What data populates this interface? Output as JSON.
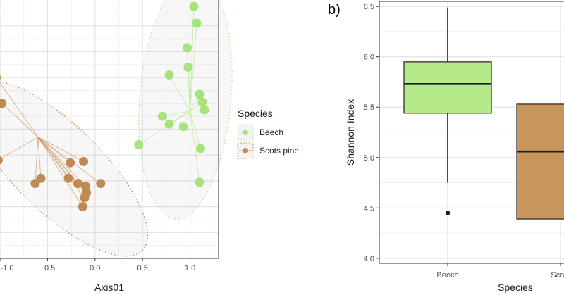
{
  "colors": {
    "beech": "#b6e98a",
    "beech_point": "#a6e37a",
    "pine": "#c8955d",
    "pine_point": "#c08a55",
    "grid_major": "#e3e3e3",
    "grid_minor": "#f1f1f1",
    "panel_border": "#333333",
    "box_line": "#1f1f1f"
  },
  "legend": {
    "title": "Species",
    "items": [
      {
        "label": "Beech",
        "series": "beech"
      },
      {
        "label": "Scots pine",
        "series": "pine"
      }
    ]
  },
  "chart_data": [
    {
      "panel": "a",
      "type": "scatter",
      "xlabel": "Axis01",
      "x_ticks": [
        -1.0,
        -0.5,
        0.0,
        0.5,
        1.0
      ],
      "x_tick_labels": [
        "-1.0",
        "−0.5",
        "0.0",
        "0.5",
        "1.0"
      ],
      "xlim": [
        -1.0,
        1.3
      ],
      "ylim": [
        -1.0,
        1.0
      ],
      "grid": true,
      "legend_position": "right",
      "series": [
        {
          "name": "Beech",
          "key": "beech",
          "centroid": [
            1.0,
            0.14
          ],
          "points": [
            [
              1.04,
              0.95
            ],
            [
              1.07,
              0.82
            ],
            [
              0.97,
              0.63
            ],
            [
              0.98,
              0.48
            ],
            [
              0.78,
              0.42
            ],
            [
              1.1,
              0.27
            ],
            [
              1.13,
              0.21
            ],
            [
              1.15,
              0.15
            ],
            [
              0.71,
              0.1
            ],
            [
              0.78,
              0.04
            ],
            [
              0.93,
              0.02
            ],
            [
              0.46,
              -0.12
            ],
            [
              1.11,
              -0.15
            ],
            [
              1.1,
              -0.41
            ]
          ]
        },
        {
          "name": "Scots pine",
          "key": "pine",
          "centroid": [
            -0.6,
            -0.06
          ],
          "points": [
            [
              -1.04,
              0.4
            ],
            [
              -0.98,
              0.2
            ],
            [
              -1.02,
              -0.24
            ],
            [
              -0.26,
              -0.26
            ],
            [
              -0.12,
              -0.25
            ],
            [
              -0.57,
              -0.38
            ],
            [
              -0.28,
              -0.38
            ],
            [
              -0.63,
              -0.42
            ],
            [
              -0.18,
              -0.42
            ],
            [
              0.06,
              -0.42
            ],
            [
              -0.1,
              -0.44
            ],
            [
              -0.09,
              -0.49
            ],
            [
              -0.11,
              -0.53
            ],
            [
              -0.13,
              -0.6
            ]
          ]
        }
      ]
    },
    {
      "panel": "b",
      "panel_label": "b)",
      "type": "box",
      "xlabel": "Species",
      "ylabel": "Shannon Index",
      "ylim": [
        3.95,
        6.55
      ],
      "y_ticks": [
        4.0,
        4.5,
        5.0,
        5.5,
        6.0,
        6.5
      ],
      "y_tick_labels": [
        "4.0",
        "4.5",
        "5.0",
        "5.5",
        "6.0",
        "6.5"
      ],
      "categories": [
        "Beech",
        "Scots"
      ],
      "boxes": [
        {
          "name": "Beech",
          "key": "beech",
          "whisker_low": 4.75,
          "q1": 5.44,
          "median": 5.73,
          "q3": 5.95,
          "whisker_high": 6.49,
          "outliers": [
            4.45
          ]
        },
        {
          "name": "Scots",
          "key": "pine",
          "whisker_low": 4.39,
          "q1": 4.39,
          "median": 5.06,
          "q3": 5.53,
          "whisker_high": 5.53,
          "outliers": []
        }
      ]
    }
  ]
}
